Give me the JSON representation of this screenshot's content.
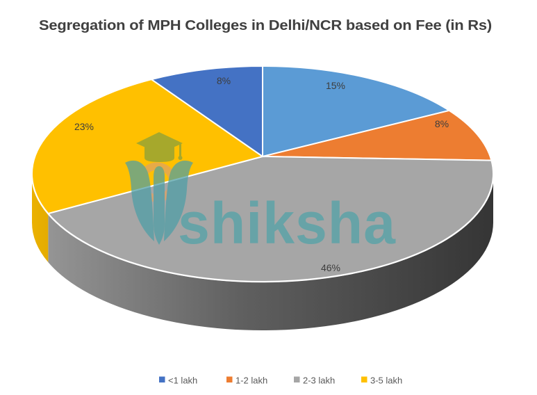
{
  "chart_data": {
    "type": "pie",
    "style": "3d",
    "title": "Segregation of MPH Colleges in Delhi/NCR based on Fee (in Rs)",
    "unit": "percent",
    "direction": "clockwise",
    "start_angle_deg": 0,
    "slices": [
      {
        "value": 15,
        "color": "#5B9BD5"
      },
      {
        "value": 8,
        "color": "#ED7D31"
      },
      {
        "value": 46,
        "color": "#A6A6A6"
      },
      {
        "value": 23,
        "color": "#FFC000"
      },
      {
        "value": 8,
        "color": "#4472C4"
      }
    ],
    "data_labels": [
      "15%",
      "8%",
      "46%",
      "23%",
      "8%"
    ],
    "legend": {
      "position": "bottom",
      "entries": [
        {
          "label": "<1 lakh",
          "color": "#4472C4"
        },
        {
          "label": "1-2 lakh",
          "color": "#ED7D31"
        },
        {
          "label": "2-3 lakh",
          "color": "#A6A6A6"
        },
        {
          "label": "3-5 lakh",
          "color": "#FFC000"
        }
      ]
    }
  },
  "watermark": {
    "text": "shiksha",
    "color": "#4FA3A8"
  },
  "colors": {
    "title_text": "#404040",
    "label_text": "#3D3D3D",
    "legend_text": "#595959",
    "background": "#FFFFFF",
    "logo_cap": "#85A03D",
    "logo_ring": "#DFA265",
    "logo_nib": "#4D9FA6"
  }
}
